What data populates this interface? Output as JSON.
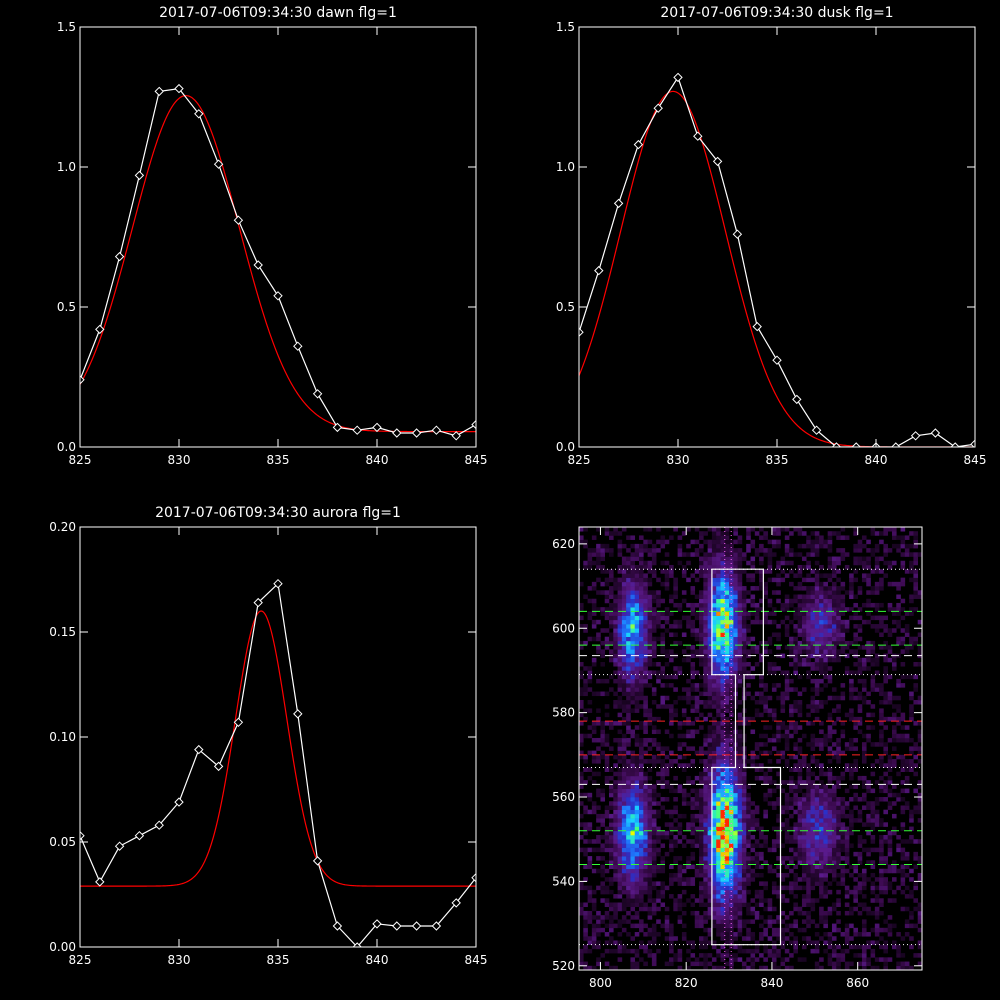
{
  "chart_data": [
    {
      "type": "line",
      "title": "2017-07-06T09:34:30 dawn flg=1",
      "xlim": [
        825,
        845
      ],
      "ylim": [
        0.0,
        1.5
      ],
      "xticks": [
        "825",
        "830",
        "835",
        "840",
        "845"
      ],
      "yticks": [
        "0.0",
        "0.5",
        "1.0",
        "1.5"
      ],
      "series": [
        {
          "kind": "data",
          "color": "#ffffff",
          "marker": "diamond",
          "x": [
            825,
            826,
            827,
            828,
            829,
            830,
            831,
            832,
            833,
            834,
            835,
            836,
            837,
            838,
            839,
            840,
            841,
            842,
            843,
            844,
            845
          ],
          "y": [
            0.24,
            0.42,
            0.68,
            0.97,
            1.27,
            1.28,
            1.19,
            1.01,
            0.81,
            0.65,
            0.54,
            0.36,
            0.19,
            0.07,
            0.06,
            0.07,
            0.05,
            0.05,
            0.06,
            0.04,
            0.08
          ]
        },
        {
          "kind": "fit",
          "color": "#ff0000",
          "gaussian": {
            "amplitude": 1.2,
            "center": 830.35,
            "sigma": 2.7,
            "offset": 0.055
          }
        }
      ]
    },
    {
      "type": "line",
      "title": "2017-07-06T09:34:30 dusk flg=1",
      "xlim": [
        825,
        845
      ],
      "ylim": [
        0.0,
        1.5
      ],
      "xticks": [
        "825",
        "830",
        "835",
        "840",
        "845"
      ],
      "yticks": [
        "0.0",
        "0.5",
        "1.0",
        "1.5"
      ],
      "series": [
        {
          "kind": "data",
          "color": "#ffffff",
          "marker": "diamond",
          "x": [
            825,
            826,
            827,
            828,
            829,
            830,
            831,
            832,
            833,
            834,
            835,
            836,
            837,
            838,
            839,
            840,
            841,
            842,
            843,
            844,
            845
          ],
          "y": [
            0.41,
            0.63,
            0.87,
            1.08,
            1.21,
            1.32,
            1.11,
            1.02,
            0.76,
            0.43,
            0.31,
            0.17,
            0.06,
            0.0,
            0.0,
            0.0,
            0.0,
            0.04,
            0.05,
            0.0,
            0.01
          ]
        },
        {
          "kind": "fit",
          "color": "#ff0000",
          "gaussian": {
            "amplitude": 1.27,
            "center": 829.75,
            "sigma": 2.65,
            "offset": 0.0
          }
        }
      ]
    },
    {
      "type": "line",
      "title": "2017-07-06T09:34:30 aurora flg=1",
      "xlim": [
        825,
        845
      ],
      "ylim": [
        0.0,
        0.2
      ],
      "xticks": [
        "825",
        "830",
        "835",
        "840",
        "845"
      ],
      "yticks": [
        "0.00",
        "0.05",
        "0.10",
        "0.15",
        "0.20"
      ],
      "series": [
        {
          "kind": "data",
          "color": "#ffffff",
          "marker": "diamond",
          "x": [
            825,
            826,
            827,
            828,
            829,
            830,
            831,
            832,
            833,
            834,
            835,
            836,
            837,
            838,
            839,
            840,
            841,
            842,
            843,
            844,
            845
          ],
          "y": [
            0.053,
            0.031,
            0.048,
            0.053,
            0.058,
            0.069,
            0.094,
            0.086,
            0.107,
            0.164,
            0.173,
            0.111,
            0.041,
            0.01,
            0.0,
            0.011,
            0.01,
            0.01,
            0.01,
            0.021,
            0.033
          ]
        },
        {
          "kind": "fit",
          "color": "#ff0000",
          "gaussian": {
            "amplitude": 0.131,
            "center": 834.15,
            "sigma": 1.3,
            "offset": 0.029
          }
        }
      ]
    },
    {
      "type": "heatmap",
      "title": "",
      "xlim": [
        795,
        875
      ],
      "ylim": [
        519,
        624
      ],
      "xticks": [
        "800",
        "820",
        "840",
        "860"
      ],
      "yticks": [
        "520",
        "540",
        "560",
        "580",
        "600",
        "620"
      ],
      "colormap": [
        "#000000",
        "#3b0a4f",
        "#5a1a8a",
        "#2a30c8",
        "#1e7cff",
        "#19d0ff",
        "#3cff8a",
        "#eaff00",
        "#ff2a00"
      ],
      "blobs": [
        {
          "x": 807.5,
          "y": 599.5,
          "sx": 2.2,
          "sy": 7.0,
          "amp": 0.58
        },
        {
          "x": 828.5,
          "y": 601.0,
          "sx": 2.3,
          "sy": 8.5,
          "amp": 0.78
        },
        {
          "x": 851.5,
          "y": 601.0,
          "sx": 2.8,
          "sy": 5.0,
          "amp": 0.28
        },
        {
          "x": 807.5,
          "y": 551.5,
          "sx": 2.3,
          "sy": 7.5,
          "amp": 0.62
        },
        {
          "x": 829.0,
          "y": 552.0,
          "sx": 2.4,
          "sy": 10.0,
          "amp": 0.98
        },
        {
          "x": 851.0,
          "y": 552.0,
          "sx": 3.0,
          "sy": 6.0,
          "amp": 0.3
        }
      ],
      "noise_level": 0.14,
      "vertical_dotted_lines": {
        "color": "#ff66ff",
        "x": [
          829.0,
          830.5
        ]
      },
      "horizontal_lines": [
        {
          "y": 614.0,
          "color": "#ffffff",
          "style": "dotted"
        },
        {
          "y": 589.0,
          "color": "#ffffff",
          "style": "dotted"
        },
        {
          "y": 567.0,
          "color": "#ffffff",
          "style": "dotted"
        },
        {
          "y": 525.0,
          "color": "#ffffff",
          "style": "dotted"
        },
        {
          "y": 604.0,
          "color": "#33ff33",
          "style": "dashed"
        },
        {
          "y": 596.0,
          "color": "#33ff33",
          "style": "dashed"
        },
        {
          "y": 552.0,
          "color": "#33ff33",
          "style": "dashed"
        },
        {
          "y": 544.0,
          "color": "#33ff33",
          "style": "dashed"
        },
        {
          "y": 593.5,
          "color": "#ffffff",
          "style": "dashed"
        },
        {
          "y": 563.0,
          "color": "#ffffff",
          "style": "dashed"
        },
        {
          "y": 578.0,
          "color": "#ff2222",
          "style": "dashed"
        },
        {
          "y": 570.0,
          "color": "#ff2222",
          "style": "dashed"
        }
      ],
      "box_outline": {
        "color": "#ffffff",
        "points": [
          [
            826,
            614
          ],
          [
            838,
            614
          ],
          [
            838,
            589
          ],
          [
            833.5,
            589
          ],
          [
            833.5,
            567
          ],
          [
            842,
            567
          ],
          [
            842,
            525
          ],
          [
            826,
            525
          ],
          [
            826,
            567
          ],
          [
            831.5,
            567
          ],
          [
            831.5,
            589
          ],
          [
            826,
            589
          ],
          [
            826,
            614
          ]
        ]
      }
    }
  ]
}
